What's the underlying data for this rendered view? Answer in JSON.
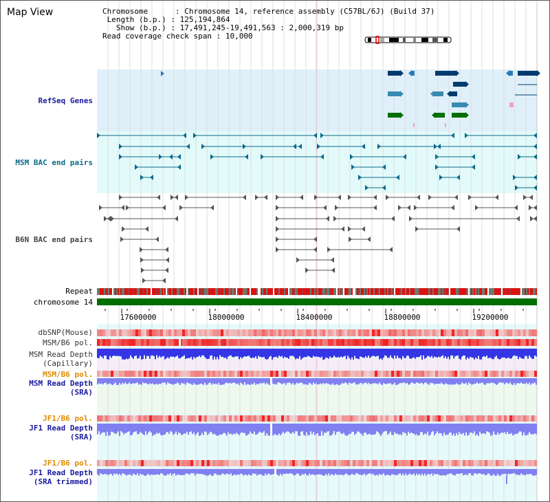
{
  "title": "Map View",
  "info": {
    "chromosome_label": "Chromosome",
    "chromosome_value": ": Chromosome 14, reference assembly (C57BL/6J) (Build 37)",
    "length_label": "Length (b.p.)",
    "length_value": ": 125,194,864",
    "show_label": "Show (b.p.)",
    "show_value": ": 17,491,245-19,491,563 : 2,000,319 bp",
    "coverage_label": "Read coverage check span",
    "coverage_value": ": 10,000"
  },
  "tracks": {
    "refseq": {
      "label": "RefSeq Genes",
      "color": "#1a1aa0"
    },
    "msm_bac": {
      "label": "MSM BAC end pairs",
      "color": "#0a6a8a"
    },
    "b6n_bac": {
      "label": "B6N BAC end pairs",
      "color": "#333333"
    },
    "repeat": {
      "label": "Repeat",
      "color": "#000000"
    },
    "chromosome": {
      "label": "chromosome 14",
      "color": "#000000"
    },
    "dbsnp": {
      "label": "dbSNP(Mouse)",
      "color": "#333333"
    },
    "msm_b6_pol": {
      "label": "MSM/B6 pol.",
      "color": "#333333"
    },
    "msm_read_cap": {
      "label": "MSM Read Depth\n(Capillary)",
      "color": "#333333"
    },
    "msm_b6_pol_sra": {
      "label": "MSM/B6 pol.",
      "color": "#e08a00"
    },
    "msm_read_sra": {
      "label": "MSM Read Depth\n(SRA)",
      "color": "#1a1aa0"
    },
    "jf1_b6_pol": {
      "label": "JF1/B6 pol.",
      "color": "#e08a00"
    },
    "jf1_read_sra": {
      "label": "JF1 Read Depth\n(SRA)",
      "color": "#1a1aa0"
    },
    "jf1_b6_pol2": {
      "label": "JF1/B6 pol.",
      "color": "#e08a00"
    },
    "jf1_read_trim": {
      "label": "JF1 Read Depth\n(SRA trimmed)",
      "color": "#1a1aa0"
    }
  },
  "axis": {
    "ticks": [
      "17600000",
      "18000000",
      "18400000",
      "18800000",
      "19200000"
    ]
  },
  "colors": {
    "refseq_bg": "#dff0fa",
    "msm_bg": "#e2fafa",
    "lower_bg": "#e6fafa",
    "chromosome_bar": "#006e00",
    "repeat_red": "#dd1111",
    "depth_blue": "#3535e6",
    "depth_light": "#8080f0"
  }
}
